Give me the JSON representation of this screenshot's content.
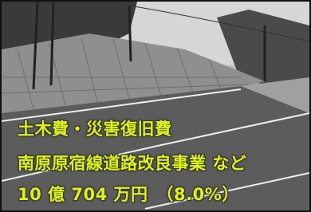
{
  "caption": {
    "lines": [
      "土木費・災害復旧費",
      "南原原宿線道路改良事業 など",
      "10 億 704 万円　（8.0%）"
    ]
  }
}
